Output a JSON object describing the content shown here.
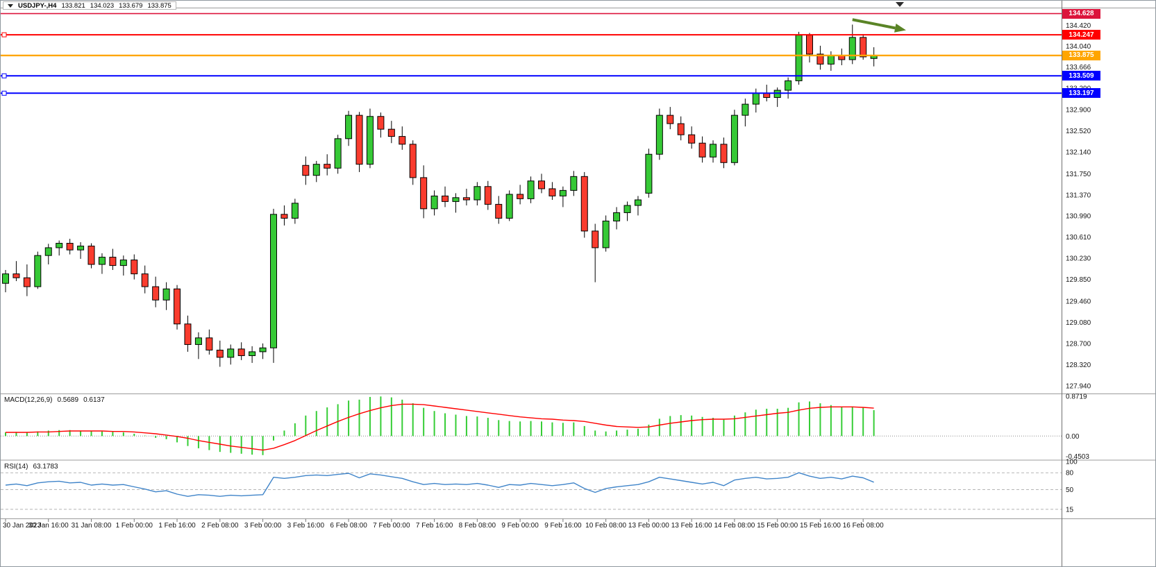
{
  "header": {
    "symbol": "USDJPY-,H4",
    "open": "133.821",
    "high": "134.023",
    "low": "133.679",
    "close": "133.875"
  },
  "colors": {
    "background": "#ffffff",
    "bull": "#36c936",
    "bear": "#fa3c2e",
    "candle_outline": "#000000",
    "wick": "#000000",
    "macd_hist": "#35cd35",
    "macd_signal": "#ff0000",
    "rsi_line": "#3f84c9",
    "axis_text": "#141414",
    "frame": "#9b9b9b",
    "arrow": "#5a8426"
  },
  "hlines": [
    {
      "label": "134.628",
      "value": 134.628,
      "color": "#dc143c",
      "width": 1.6,
      "handles": false
    },
    {
      "label": "134.247",
      "value": 134.247,
      "color": "#ff0000",
      "width": 2,
      "handles": true
    },
    {
      "label": "133.875",
      "value": 133.875,
      "color": "#ffa500",
      "width": 2.4,
      "handles": false
    },
    {
      "label": "133.509",
      "value": 133.509,
      "color": "#0000ff",
      "width": 2,
      "handles": true
    },
    {
      "label": "133.197",
      "value": 133.197,
      "color": "#0000ff",
      "width": 2,
      "handles": true
    }
  ],
  "macd": {
    "name": "MACD(12,26,9)",
    "value_main": "0.5689",
    "value_signal": "0.6137"
  },
  "rsi": {
    "name": "RSI(14)",
    "value": "63.1783"
  },
  "annotations": {
    "trend_arrow": {
      "x1_index": 79,
      "y1_price": 134.52,
      "x2_index": 84,
      "y2_price": 134.33,
      "color": "#5a8426"
    }
  },
  "chart_data": [
    {
      "type": "candlestick",
      "symbol": "USDJPY-",
      "timeframe": "H4",
      "grid": false,
      "y_range": [
        127.8,
        134.71
      ],
      "y_axis_labels": [
        "134.420",
        "134.040",
        "133.666",
        "133.290",
        "132.900",
        "132.520",
        "132.140",
        "131.750",
        "131.370",
        "130.990",
        "130.610",
        "130.230",
        "129.850",
        "129.460",
        "129.080",
        "128.700",
        "128.320",
        "127.940"
      ],
      "x_tick_indices": [
        0,
        4,
        8,
        12,
        16,
        20,
        24,
        28,
        32,
        36,
        40,
        44,
        48,
        52,
        56,
        60,
        64,
        68,
        72,
        76,
        80
      ],
      "x_tick_labels": [
        "30 Jan 2023",
        "30 Jan 16:00",
        "31 Jan 08:00",
        "1 Feb 00:00",
        "1 Feb 16:00",
        "2 Feb 08:00",
        "3 Feb 00:00",
        "3 Feb 16:00",
        "6 Feb 08:00",
        "7 Feb 00:00",
        "7 Feb 16:00",
        "8 Feb 08:00",
        "9 Feb 00:00",
        "9 Feb 16:00",
        "10 Feb 08:00",
        "13 Feb 00:00",
        "13 Feb 16:00",
        "14 Feb 08:00",
        "15 Feb 00:00",
        "15 Feb 16:00",
        "16 Feb 08:00"
      ],
      "ohlc_order": "open,high,low,close",
      "candles": [
        [
          129.78,
          130.02,
          129.62,
          129.95
        ],
        [
          129.95,
          130.18,
          129.82,
          129.88
        ],
        [
          129.88,
          130.12,
          129.55,
          129.72
        ],
        [
          129.72,
          130.35,
          129.68,
          130.28
        ],
        [
          130.28,
          130.49,
          130.12,
          130.42
        ],
        [
          130.42,
          130.55,
          130.28,
          130.5
        ],
        [
          130.5,
          130.58,
          130.3,
          130.38
        ],
        [
          130.38,
          130.52,
          130.22,
          130.45
        ],
        [
          130.45,
          130.5,
          130.05,
          130.12
        ],
        [
          130.12,
          130.32,
          129.95,
          130.25
        ],
        [
          130.25,
          130.4,
          130.02,
          130.1
        ],
        [
          130.1,
          130.28,
          129.92,
          130.2
        ],
        [
          130.2,
          130.3,
          129.85,
          129.95
        ],
        [
          129.95,
          130.1,
          129.6,
          129.72
        ],
        [
          129.72,
          129.9,
          129.35,
          129.48
        ],
        [
          129.48,
          129.8,
          129.3,
          129.68
        ],
        [
          129.68,
          129.75,
          128.95,
          129.05
        ],
        [
          129.05,
          129.2,
          128.55,
          128.68
        ],
        [
          128.68,
          128.9,
          128.42,
          128.8
        ],
        [
          128.8,
          128.95,
          128.5,
          128.58
        ],
        [
          128.58,
          128.75,
          128.28,
          128.45
        ],
        [
          128.45,
          128.68,
          128.32,
          128.6
        ],
        [
          128.6,
          128.72,
          128.4,
          128.48
        ],
        [
          128.48,
          128.65,
          128.35,
          128.55
        ],
        [
          128.55,
          128.7,
          128.42,
          128.62
        ],
        [
          128.62,
          131.12,
          128.35,
          131.02
        ],
        [
          131.02,
          131.18,
          130.82,
          130.95
        ],
        [
          130.95,
          131.3,
          130.85,
          131.22
        ],
        [
          131.9,
          132.06,
          131.55,
          131.72
        ],
        [
          131.72,
          131.98,
          131.6,
          131.92
        ],
        [
          131.92,
          132.1,
          131.72,
          131.85
        ],
        [
          131.85,
          132.45,
          131.75,
          132.38
        ],
        [
          132.38,
          132.88,
          132.25,
          132.8
        ],
        [
          132.8,
          132.86,
          131.78,
          131.92
        ],
        [
          131.92,
          132.92,
          131.85,
          132.78
        ],
        [
          132.78,
          132.85,
          132.4,
          132.55
        ],
        [
          132.55,
          132.7,
          132.3,
          132.42
        ],
        [
          132.42,
          132.6,
          132.18,
          132.28
        ],
        [
          132.28,
          132.35,
          131.55,
          131.68
        ],
        [
          131.68,
          131.9,
          130.95,
          131.12
        ],
        [
          131.12,
          131.45,
          131.0,
          131.35
        ],
        [
          131.35,
          131.52,
          131.15,
          131.25
        ],
        [
          131.25,
          131.4,
          131.05,
          131.32
        ],
        [
          131.32,
          131.48,
          131.18,
          131.28
        ],
        [
          131.28,
          131.6,
          131.18,
          131.52
        ],
        [
          131.52,
          131.62,
          131.1,
          131.2
        ],
        [
          131.2,
          131.35,
          130.85,
          130.95
        ],
        [
          130.95,
          131.45,
          130.9,
          131.38
        ],
        [
          131.38,
          131.55,
          131.2,
          131.3
        ],
        [
          131.3,
          131.7,
          131.22,
          131.62
        ],
        [
          131.62,
          131.75,
          131.4,
          131.48
        ],
        [
          131.48,
          131.6,
          131.28,
          131.35
        ],
        [
          131.35,
          131.52,
          131.15,
          131.45
        ],
        [
          131.45,
          131.8,
          131.35,
          131.7
        ],
        [
          131.7,
          131.78,
          130.6,
          130.72
        ],
        [
          130.72,
          130.85,
          129.8,
          130.42
        ],
        [
          130.42,
          131.0,
          130.35,
          130.9
        ],
        [
          130.9,
          131.15,
          130.75,
          131.05
        ],
        [
          131.05,
          131.25,
          130.9,
          131.18
        ],
        [
          131.18,
          131.35,
          131.0,
          131.28
        ],
        [
          131.4,
          132.2,
          131.32,
          132.1
        ],
        [
          132.1,
          132.92,
          132.0,
          132.8
        ],
        [
          132.8,
          132.95,
          132.55,
          132.65
        ],
        [
          132.65,
          132.78,
          132.35,
          132.45
        ],
        [
          132.45,
          132.6,
          132.2,
          132.3
        ],
        [
          132.3,
          132.42,
          131.95,
          132.05
        ],
        [
          132.05,
          132.35,
          131.95,
          132.28
        ],
        [
          132.28,
          132.4,
          131.85,
          131.95
        ],
        [
          131.95,
          132.9,
          131.9,
          132.8
        ],
        [
          132.8,
          133.1,
          132.6,
          133.0
        ],
        [
          133.0,
          133.28,
          132.85,
          133.2
        ],
        [
          133.2,
          133.35,
          133.05,
          133.12
        ],
        [
          133.12,
          133.3,
          132.95,
          133.25
        ],
        [
          133.25,
          133.48,
          133.1,
          133.42
        ],
        [
          133.42,
          134.3,
          133.35,
          134.24
        ],
        [
          134.24,
          134.28,
          133.75,
          133.9
        ],
        [
          133.9,
          134.05,
          133.62,
          133.72
        ],
        [
          133.72,
          133.95,
          133.6,
          133.88
        ],
        [
          133.88,
          134.0,
          133.7,
          133.8
        ],
        [
          133.8,
          134.43,
          133.72,
          134.2
        ],
        [
          134.2,
          134.26,
          133.8,
          133.85
        ],
        [
          133.821,
          134.023,
          133.679,
          133.875
        ]
      ]
    },
    {
      "type": "bar",
      "name": "MACD(12,26,9)",
      "current_values": [
        0.5689,
        0.6137
      ],
      "y_axis_labels": [
        "0.8719",
        "0.00",
        "-0.4503"
      ],
      "values": [
        0.08,
        0.09,
        0.08,
        0.1,
        0.12,
        0.13,
        0.13,
        0.12,
        0.11,
        0.1,
        0.09,
        0.08,
        0.05,
        0.01,
        -0.04,
        -0.07,
        -0.14,
        -0.22,
        -0.27,
        -0.31,
        -0.35,
        -0.37,
        -0.39,
        -0.41,
        -0.42,
        -0.1,
        0.12,
        0.28,
        0.45,
        0.55,
        0.63,
        0.7,
        0.78,
        0.8,
        0.86,
        0.87,
        0.85,
        0.8,
        0.72,
        0.62,
        0.55,
        0.5,
        0.47,
        0.44,
        0.43,
        0.4,
        0.35,
        0.33,
        0.32,
        0.33,
        0.32,
        0.3,
        0.29,
        0.3,
        0.22,
        0.12,
        0.1,
        0.12,
        0.14,
        0.16,
        0.25,
        0.38,
        0.44,
        0.46,
        0.45,
        0.42,
        0.4,
        0.36,
        0.45,
        0.52,
        0.58,
        0.6,
        0.6,
        0.62,
        0.74,
        0.76,
        0.72,
        0.68,
        0.64,
        0.65,
        0.62,
        0.5689
      ],
      "signal": [
        0.08,
        0.08,
        0.08,
        0.09,
        0.09,
        0.1,
        0.11,
        0.11,
        0.11,
        0.11,
        0.1,
        0.1,
        0.09,
        0.07,
        0.05,
        0.02,
        -0.01,
        -0.05,
        -0.1,
        -0.14,
        -0.18,
        -0.22,
        -0.25,
        -0.28,
        -0.31,
        -0.27,
        -0.19,
        -0.1,
        0.01,
        0.12,
        0.22,
        0.32,
        0.41,
        0.49,
        0.56,
        0.62,
        0.67,
        0.7,
        0.7,
        0.69,
        0.66,
        0.63,
        0.6,
        0.57,
        0.54,
        0.51,
        0.48,
        0.45,
        0.42,
        0.4,
        0.38,
        0.37,
        0.35,
        0.34,
        0.32,
        0.28,
        0.24,
        0.21,
        0.2,
        0.19,
        0.2,
        0.24,
        0.28,
        0.31,
        0.34,
        0.36,
        0.37,
        0.37,
        0.38,
        0.41,
        0.44,
        0.47,
        0.5,
        0.52,
        0.57,
        0.61,
        0.63,
        0.64,
        0.64,
        0.64,
        0.63,
        0.6137
      ]
    },
    {
      "type": "line",
      "name": "RSI(14)",
      "current_value": 63.1783,
      "levels": [
        80,
        50,
        15
      ],
      "y_axis_labels": [
        "100",
        "80",
        "50",
        "15"
      ],
      "y_range": [
        0,
        100
      ],
      "values": [
        58,
        60,
        57,
        62,
        64,
        65,
        62,
        63,
        58,
        60,
        58,
        59,
        55,
        51,
        46,
        48,
        42,
        38,
        41,
        40,
        38,
        40,
        39,
        40,
        41,
        72,
        70,
        72,
        75,
        76,
        75,
        77,
        79,
        71,
        78,
        76,
        73,
        70,
        64,
        59,
        61,
        59,
        60,
        59,
        61,
        58,
        54,
        59,
        58,
        61,
        59,
        57,
        59,
        62,
        52,
        45,
        52,
        55,
        57,
        59,
        64,
        72,
        69,
        66,
        63,
        60,
        63,
        57,
        67,
        70,
        72,
        69,
        70,
        72,
        80,
        74,
        70,
        72,
        69,
        74,
        71,
        63.1783
      ]
    }
  ]
}
